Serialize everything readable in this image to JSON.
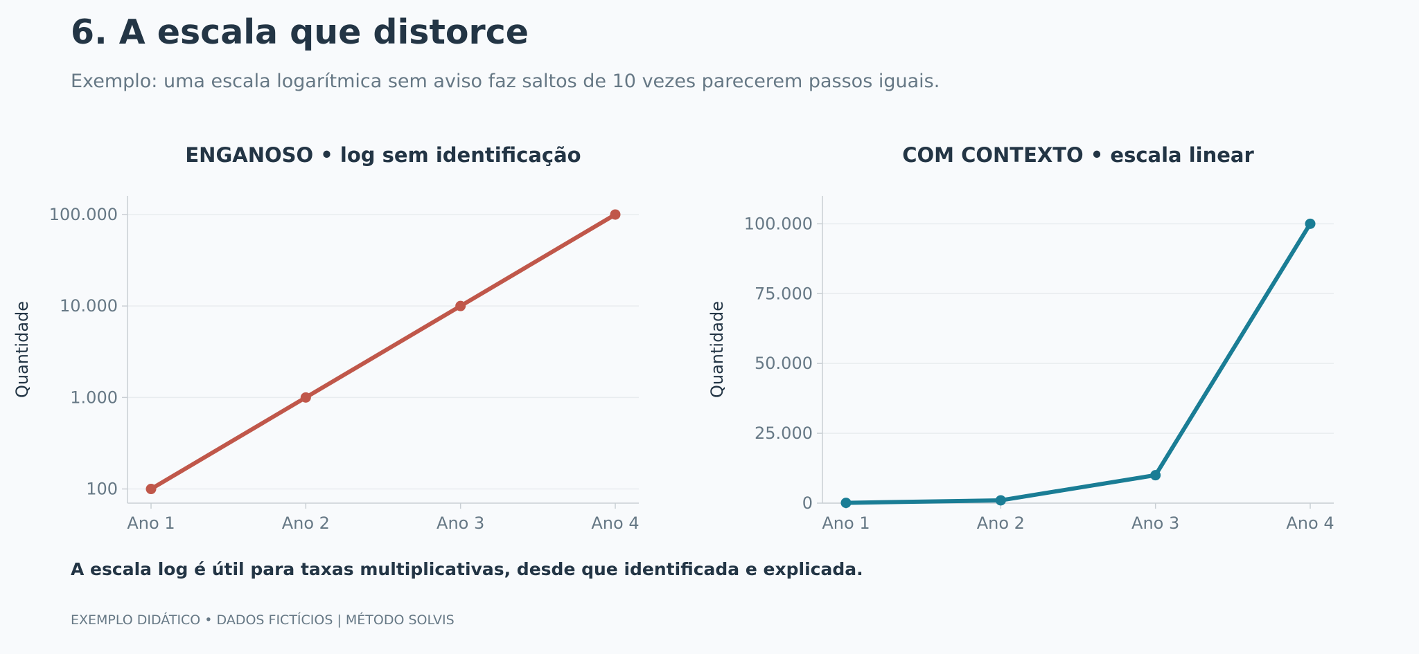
{
  "header": {
    "title": "6. A escala que distorce",
    "subtitle": "Exemplo: uma escala logarítmica sem aviso faz saltos de 10 vezes parecerem passos iguais."
  },
  "takeaway": "A escala log é útil para taxas multiplicativas, desde que identificada e explicada.",
  "footer": "EXEMPLO DIDÁTICO • DADOS FICTÍCIOS | MÉTODO SOLVIS",
  "chart_data": [
    {
      "type": "line",
      "title": "ENGANOSO • log sem identificação",
      "xlabel": "",
      "ylabel": "Quantidade",
      "yscale": "log",
      "ylim": [
        70,
        160000
      ],
      "categories": [
        "Ano 1",
        "Ano 2",
        "Ano 3",
        "Ano 4"
      ],
      "values": [
        100,
        1000,
        10000,
        100000
      ],
      "yticks": [
        100,
        1000,
        10000,
        100000
      ],
      "ytick_labels": [
        "100",
        "1.000",
        "10.000",
        "100.000"
      ],
      "color": "#c0574a",
      "grid": true
    },
    {
      "type": "line",
      "title": "COM CONTEXTO • escala linear",
      "xlabel": "",
      "ylabel": "Quantidade",
      "yscale": "linear",
      "ylim": [
        0,
        110000
      ],
      "categories": [
        "Ano 1",
        "Ano 2",
        "Ano 3",
        "Ano 4"
      ],
      "values": [
        100,
        1000,
        10000,
        100000
      ],
      "yticks": [
        0,
        25000,
        50000,
        75000,
        100000
      ],
      "ytick_labels": [
        "0",
        "25.000",
        "50.000",
        "75.000",
        "100.000"
      ],
      "color": "#1a7d95",
      "grid": true
    }
  ]
}
